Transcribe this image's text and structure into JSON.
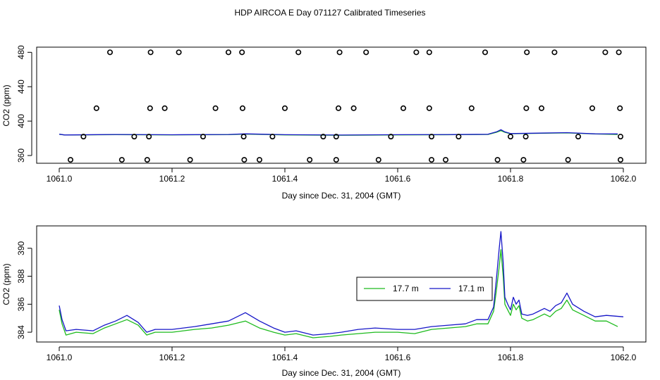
{
  "title": "HDP AIRCOA E  Day 071127  Calibrated Timeseries",
  "colors": {
    "green": "#1dbb1d",
    "blue": "#1616c8",
    "black": "#000000"
  },
  "chart_data": [
    {
      "type": "scatter",
      "name": "top-panel",
      "xlabel": "Day since Dec. 31, 2004 (GMT)",
      "ylabel": "CO2 (ppm)",
      "xlim": [
        1060.96,
        1062.04
      ],
      "ylim": [
        351,
        486
      ],
      "xticks": [
        "1061.0",
        "1061.2",
        "1061.4",
        "1061.6",
        "1061.8",
        "1062.0"
      ],
      "xtick_values": [
        1061.0,
        1061.2,
        1061.4,
        1061.6,
        1061.8,
        1062.0
      ],
      "yticks": [
        "360",
        "400",
        "440",
        "480"
      ],
      "ytick_values": [
        360,
        400,
        440,
        480
      ],
      "points": {
        "x": [
          1061.09,
          1061.162,
          1061.212,
          1061.3,
          1061.324,
          1061.424,
          1061.497,
          1061.544,
          1061.633,
          1061.656,
          1061.755,
          1061.829,
          1061.878,
          1061.968,
          1061.992,
          1061.066,
          1061.161,
          1061.187,
          1061.277,
          1061.325,
          1061.4,
          1061.495,
          1061.522,
          1061.61,
          1061.656,
          1061.731,
          1061.828,
          1061.855,
          1061.945,
          1061.994,
          1061.043,
          1061.133,
          1061.159,
          1061.255,
          1061.327,
          1061.378,
          1061.468,
          1061.491,
          1061.588,
          1061.66,
          1061.708,
          1061.8,
          1061.827,
          1061.92,
          1061.995,
          1061.02,
          1061.111,
          1061.156,
          1061.232,
          1061.328,
          1061.355,
          1061.444,
          1061.491,
          1061.566,
          1061.66,
          1061.685,
          1061.777,
          1061.823,
          1061.902,
          1061.995
        ],
        "y": [
          480,
          480,
          480,
          480,
          480,
          480,
          480,
          480,
          480,
          480,
          480,
          480,
          480,
          480,
          480,
          415,
          415,
          415,
          415,
          415,
          415,
          415,
          415,
          415,
          415,
          415,
          415,
          415,
          415,
          415,
          382,
          382,
          382,
          382,
          382,
          382,
          382,
          382,
          382,
          382,
          382,
          382,
          382,
          382,
          382,
          355,
          355,
          355,
          355,
          355,
          355,
          355,
          355,
          355,
          355,
          355,
          355,
          355,
          355,
          355
        ]
      },
      "series": [
        {
          "name": "17.7 m",
          "color": "#1dbb1d",
          "x": [
            1061.0,
            1061.01,
            1061.1,
            1061.2,
            1061.3,
            1061.33,
            1061.4,
            1061.5,
            1061.6,
            1061.7,
            1061.76,
            1061.775,
            1061.783,
            1061.79,
            1061.8,
            1061.9,
            1061.95,
            1061.99
          ],
          "y": [
            384.7,
            383.8,
            384.3,
            384.0,
            384.3,
            384.9,
            384.0,
            383.6,
            384.0,
            384.2,
            384.5,
            387.0,
            389.0,
            387.0,
            385.3,
            386.3,
            385.0,
            384.5
          ]
        },
        {
          "name": "17.1 m",
          "color": "#1616c8",
          "x": [
            1061.0,
            1061.01,
            1061.1,
            1061.2,
            1061.3,
            1061.33,
            1061.4,
            1061.5,
            1061.6,
            1061.7,
            1061.76,
            1061.775,
            1061.783,
            1061.79,
            1061.8,
            1061.9,
            1061.95,
            1061.99
          ],
          "y": [
            384.8,
            383.9,
            384.5,
            384.1,
            384.5,
            385.2,
            384.2,
            383.8,
            384.2,
            384.4,
            384.7,
            387.5,
            390.0,
            387.5,
            385.5,
            386.6,
            385.2,
            385.1
          ]
        }
      ]
    },
    {
      "type": "line",
      "name": "bottom-panel",
      "xlabel": "Day since Dec. 31, 2004 (GMT)",
      "ylabel": "CO2 (ppm)",
      "xlim": [
        1060.96,
        1062.04
      ],
      "ylim": [
        383.3,
        391.6
      ],
      "xticks": [
        "1061.0",
        "1061.2",
        "1061.4",
        "1061.6",
        "1061.8",
        "1062.0"
      ],
      "xtick_values": [
        1061.0,
        1061.2,
        1061.4,
        1061.6,
        1061.8,
        1062.0
      ],
      "yticks": [
        "384",
        "386",
        "388",
        "390"
      ],
      "ytick_values": [
        384,
        386,
        388,
        390
      ],
      "legend": {
        "position": "center-right",
        "entries": [
          "17.7 m",
          "17.1 m"
        ]
      },
      "series": [
        {
          "name": "17.7 m",
          "color": "#1dbb1d",
          "x": [
            1061.0,
            1061.005,
            1061.012,
            1061.03,
            1061.06,
            1061.08,
            1061.1,
            1061.12,
            1061.14,
            1061.155,
            1061.17,
            1061.2,
            1061.24,
            1061.27,
            1061.3,
            1061.33,
            1061.355,
            1061.38,
            1061.4,
            1061.42,
            1061.45,
            1061.48,
            1061.5,
            1061.53,
            1061.56,
            1061.6,
            1061.63,
            1061.66,
            1061.69,
            1061.72,
            1061.74,
            1061.76,
            1061.77,
            1061.775,
            1061.78,
            1061.783,
            1061.787,
            1061.79,
            1061.795,
            1061.8,
            1061.805,
            1061.81,
            1061.815,
            1061.82,
            1061.83,
            1061.84,
            1061.86,
            1061.87,
            1061.88,
            1061.89,
            1061.9,
            1061.91,
            1061.93,
            1061.95,
            1061.97,
            1061.99
          ],
          "y": [
            385.6,
            384.6,
            383.8,
            384.0,
            383.9,
            384.3,
            384.6,
            384.9,
            384.5,
            383.8,
            384.0,
            384.0,
            384.2,
            384.3,
            384.5,
            384.8,
            384.3,
            384.0,
            383.8,
            383.9,
            383.6,
            383.7,
            383.8,
            383.9,
            384.0,
            384.0,
            383.9,
            384.2,
            384.3,
            384.4,
            384.6,
            384.6,
            385.5,
            387.0,
            388.7,
            389.9,
            388.0,
            386.0,
            385.6,
            385.2,
            386.0,
            385.6,
            385.9,
            385.0,
            384.8,
            384.9,
            385.3,
            385.1,
            385.5,
            385.7,
            386.3,
            385.6,
            385.2,
            384.8,
            384.8,
            384.4
          ]
        },
        {
          "name": "17.1 m",
          "color": "#1616c8",
          "x": [
            1061.0,
            1061.005,
            1061.012,
            1061.03,
            1061.06,
            1061.08,
            1061.1,
            1061.12,
            1061.14,
            1061.155,
            1061.17,
            1061.2,
            1061.24,
            1061.27,
            1061.3,
            1061.33,
            1061.355,
            1061.38,
            1061.4,
            1061.42,
            1061.45,
            1061.48,
            1061.5,
            1061.53,
            1061.56,
            1061.6,
            1061.63,
            1061.66,
            1061.69,
            1061.72,
            1061.74,
            1061.76,
            1061.77,
            1061.775,
            1061.78,
            1061.783,
            1061.787,
            1061.79,
            1061.795,
            1061.8,
            1061.805,
            1061.81,
            1061.815,
            1061.82,
            1061.83,
            1061.84,
            1061.86,
            1061.87,
            1061.88,
            1061.89,
            1061.9,
            1061.91,
            1061.93,
            1061.95,
            1061.97,
            1062.0
          ],
          "y": [
            385.9,
            384.9,
            384.1,
            384.2,
            384.1,
            384.5,
            384.8,
            385.2,
            384.7,
            384.0,
            384.2,
            384.2,
            384.4,
            384.6,
            384.8,
            385.4,
            384.8,
            384.3,
            384.0,
            384.1,
            383.8,
            383.9,
            384.0,
            384.2,
            384.3,
            384.2,
            384.2,
            384.4,
            384.5,
            384.6,
            384.9,
            384.9,
            385.8,
            387.8,
            390.0,
            391.2,
            389.0,
            386.5,
            386.0,
            385.6,
            386.5,
            386.0,
            386.3,
            385.3,
            385.2,
            385.3,
            385.7,
            385.5,
            385.9,
            386.1,
            386.8,
            386.0,
            385.5,
            385.1,
            385.2,
            385.1
          ]
        }
      ]
    }
  ]
}
